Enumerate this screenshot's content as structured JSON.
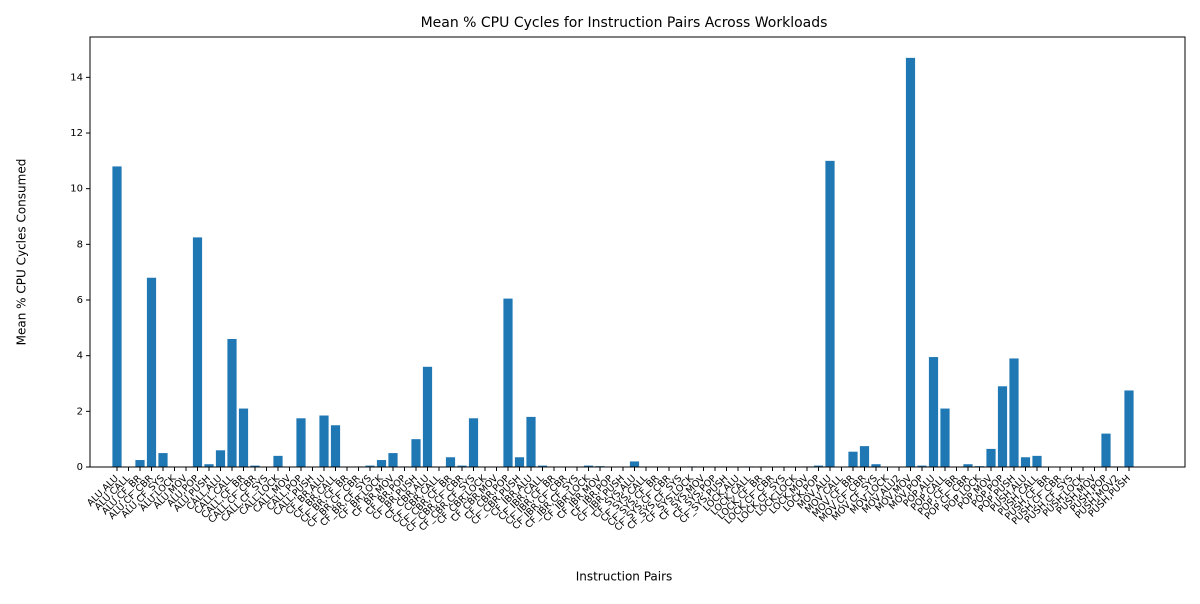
{
  "chart_data": {
    "type": "bar",
    "title": "Mean % CPU Cycles for Instruction Pairs Across Workloads",
    "x_label": "Instruction Pairs",
    "y_label": "Mean % CPU Cycles Consumed",
    "color": "#1f77b4",
    "categories": [
      "ALU,ALU",
      "ALU,CALL",
      "ALU,CF_BR",
      "ALU,CF_CBR",
      "ALU,CF_SYS",
      "ALU,LOCK",
      "ALU,MOV",
      "ALU,POP",
      "ALU,PUSH",
      "CALL,ALU",
      "CALL,CALL",
      "CALL,CF_BR",
      "CALL,CF_CBR",
      "CALL,CF_SYS",
      "CALL,LOCK",
      "CALL,MOV",
      "CALL,POP",
      "CALL,PUSH",
      "CF_BR,ALU",
      "CF_BR,CALL",
      "CF_BR,CF_BR",
      "CF_BR,CF_CBR",
      "CF_BR,CF_SYS",
      "CF_BR,LOCK",
      "CF_BR,MOV",
      "CF_BR,POP",
      "CF_BR,PUSH",
      "CF_CBR,ALU",
      "CF_CBR,CALL",
      "CF_CBR,CF_BR",
      "CF_CBR,CF_CBR",
      "CF_CBR,CF_SYS",
      "CF_CBR,LOCK",
      "CF_CBR,MOV",
      "CF_CBR,POP",
      "CF_CBR,PUSH",
      "CF_IBR,ALU",
      "CF_IBR,CALL",
      "CF_IBR,CF_BR",
      "CF_IBR,CF_CBR",
      "CF_IBR,CF_SYS",
      "CF_IBR,LOCK",
      "CF_IBR,MOV",
      "CF_IBR,POP",
      "CF_IBR,PUSH",
      "CF_SYS,ALU",
      "CF_SYS,CALL",
      "CF_SYS,CF_BR",
      "CF_SYS,CF_CBR",
      "CF_SYS,CF_SYS",
      "CF_SYS,LOCK",
      "CF_SYS,MOV",
      "CF_SYS,POP",
      "CF_SYS,PUSH",
      "LOCK,ALU",
      "LOCK,CALL",
      "LOCK,CF_BR",
      "LOCK,CF_CBR",
      "LOCK,CF_SYS",
      "LOCK,LOCK",
      "LOCK,MOV",
      "LOCK,POP",
      "MOV,ALU",
      "MOV,CALL",
      "MOV,CF_BR",
      "MOV,CF_CBR",
      "MOV,CF_SYS",
      "MOV,LOCK",
      "MOV,ALU2",
      "MOV,MOV",
      "MOV,POP",
      "POP,ALU",
      "POP,CALL",
      "POP,CF_BR",
      "POP,CF_CBR",
      "POP,LOCK",
      "POP,MOV",
      "POP,POP",
      "POP,PUSH",
      "PUSH,ALU",
      "PUSH,CALL",
      "PUSH,CF_BR",
      "PUSH,CF_CBR",
      "PUSH,CF_SYS",
      "PUSH,LOCK",
      "PUSH,MOV",
      "PUSH,POP",
      "PUSH,MOV2",
      "PUSH,PUSH"
    ],
    "values": [
      10.8,
      0,
      0.25,
      6.8,
      0.5,
      0,
      0,
      8.25,
      0.1,
      0.6,
      4.6,
      2.1,
      0.05,
      0,
      0.4,
      0,
      1.75,
      0,
      1.85,
      1.5,
      0,
      0.02,
      0.05,
      0.25,
      0.5,
      0.02,
      1.0,
      3.6,
      0,
      0.35,
      0.05,
      1.75,
      0,
      0,
      6.05,
      0.35,
      1.8,
      0.05,
      0,
      0,
      0,
      0.05,
      0.03,
      0,
      0,
      0.2,
      0,
      0,
      0,
      0,
      0.02,
      0,
      0,
      0,
      0,
      0.02,
      0.02,
      0,
      0,
      0,
      0.02,
      0.05,
      11.0,
      0,
      0.55,
      0.75,
      0.1,
      0,
      0,
      14.7,
      0.05,
      3.95,
      2.1,
      0,
      0.1,
      0.03,
      0.65,
      2.9,
      3.9,
      0.35,
      0.4,
      0,
      0,
      0,
      0,
      0,
      1.2,
      0.02,
      2.75
    ],
    "ylim": [
      0,
      15.45
    ],
    "yticks": [
      0,
      2,
      4,
      6,
      8,
      10,
      12,
      14
    ]
  }
}
